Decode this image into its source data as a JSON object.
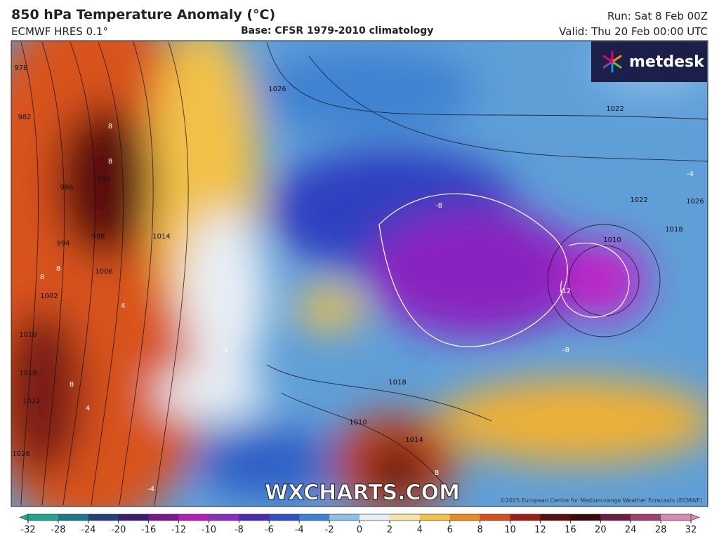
{
  "header": {
    "title": "850 hPa Temperature Anomaly (°C)",
    "model": "ECMWF HRES 0.1°",
    "base": "Base: CFSR 1979-2010 climatology",
    "run": "Run: Sat 8 Feb 00Z",
    "valid": "Valid: Thu 20 Feb 00:00 UTC"
  },
  "map": {
    "logo": "metdesk",
    "watermark": "WXCHARTS.COM",
    "copyright": "©2025 European Centre for Medium-range Weather Forecasts (ECMWF)",
    "isobar_labels": [
      978,
      982,
      986,
      990,
      994,
      998,
      1002,
      1006,
      1010,
      1014,
      1018,
      1022,
      1026,
      1026,
      1022,
      1022,
      1018,
      1026,
      1010,
      1018,
      1014,
      1010
    ],
    "anomaly_labels": [
      8,
      8,
      8,
      8,
      8,
      -8,
      -12,
      -8,
      -4,
      -4,
      4,
      4,
      8,
      -4
    ]
  },
  "colorbar": {
    "ticks": [
      -32,
      -28,
      -24,
      -20,
      -16,
      -12,
      -10,
      -8,
      -6,
      -4,
      -2,
      0,
      2,
      4,
      6,
      8,
      10,
      12,
      16,
      20,
      24,
      28,
      32
    ],
    "colors": [
      "#1fa88a",
      "#1a7a8c",
      "#23407a",
      "#3a1f6e",
      "#7a1a8a",
      "#b51fb8",
      "#8a2ec2",
      "#4b2bb0",
      "#2f4fc6",
      "#3d82d1",
      "#8ec0e6",
      "#e3eef5",
      "#f5e3a8",
      "#f2c145",
      "#e98a22",
      "#d5501b",
      "#9e1f16",
      "#5a1010",
      "#3b0a0a",
      "#6a2040",
      "#a0406e",
      "#d58ab0"
    ]
  }
}
